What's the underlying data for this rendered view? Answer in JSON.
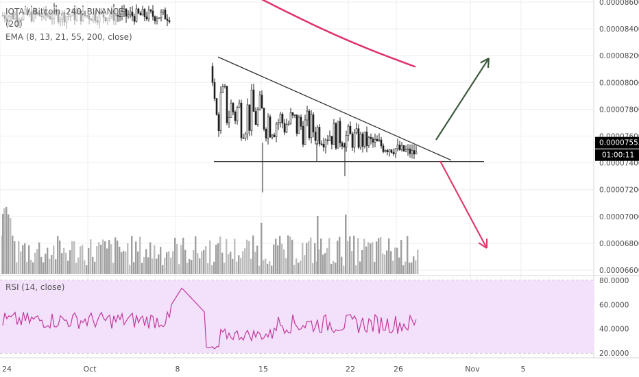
{
  "chart_data": [
    {
      "type": "candlestick",
      "pane": "price",
      "legend": {
        "symbol_line": "IOTA / Bitcoin, 240, BINANCE",
        "indicator_1": "(20)",
        "ema_line": "EMA (8, 13, 21, 55, 200, close)"
      },
      "y_axis_labels": [
        "0.00008600",
        "0.00008400",
        "0.00008200",
        "0.00008000",
        "0.00007800",
        "0.00007600",
        "0.00007400",
        "0.00007200",
        "0.00007000",
        "0.00006800",
        "0.00006600"
      ],
      "ylim": [
        6.58e-05,
        8.62e-05
      ],
      "x_axis_labels": [
        "24",
        "Oct",
        "8",
        "15",
        "22",
        "26",
        "Nov",
        "5"
      ],
      "last_price": "0.00007553",
      "countdown": "01:00:11",
      "series_description_values": {
        "pre_drop_range": [
          8.38e-05,
          8.62e-05
        ],
        "drop_low": 7.18e-05,
        "support": 7.41e-05,
        "triangle_top_start": 8.19e-05,
        "triangle_apex": 7.42e-05,
        "ema200_start": 8.62e-05,
        "ema200_end": 8.09e-05
      },
      "annotations": {
        "support_line": 7.41e-05,
        "upper_arrow_target": 8.19e-05,
        "lower_arrow_target": 6.76e-05
      },
      "grid": true
    },
    {
      "type": "bar",
      "pane": "volume",
      "note": "volume histogram"
    },
    {
      "type": "line",
      "pane": "rsi",
      "legend": "RSI (14, close)",
      "y_axis_labels": [
        "80.0000",
        "60.0000",
        "40.0000",
        "20.0000"
      ],
      "ylim": [
        18,
        82
      ],
      "band": [
        30,
        70
      ],
      "band_color": "#f3e0fb",
      "line_color": "#c0399b"
    }
  ],
  "colors": {
    "candle": "#1f1f1f",
    "volume": "#bdbdbd",
    "volume_dark": "#9e9e9e",
    "ema": "#e0306a",
    "trend_line": "#2f2f2f",
    "up_arrow": "#3d5a3d",
    "down_arrow": "#e03a6a",
    "label_dark": "#000000",
    "label_text": "#ffffff"
  }
}
